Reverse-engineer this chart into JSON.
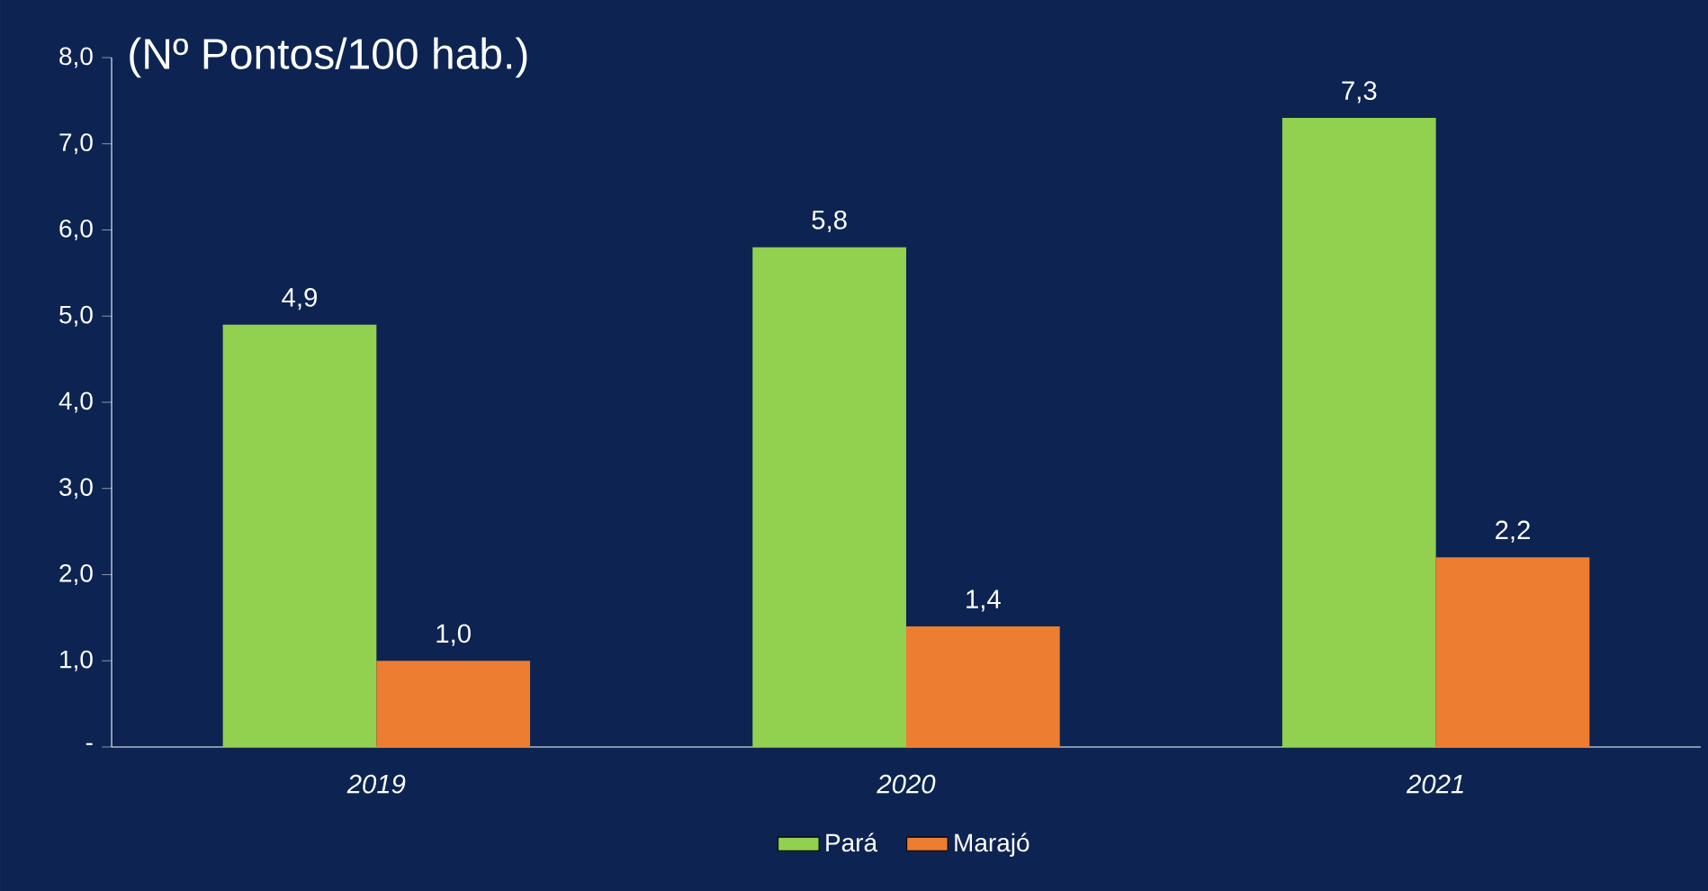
{
  "chart_data": {
    "type": "bar",
    "ylabel": "(Nº Pontos/100 hab.)",
    "categories": [
      "2019",
      "2020",
      "2021"
    ],
    "series": [
      {
        "name": "Pará",
        "color": "#92d050",
        "values": [
          4.9,
          5.8,
          7.3
        ],
        "value_labels": [
          "4,9",
          "5,8",
          "7,3"
        ]
      },
      {
        "name": "Marajó",
        "color": "#ed7d31",
        "values": [
          1.0,
          1.4,
          2.2
        ],
        "value_labels": [
          "1,0",
          "1,4",
          "2,2"
        ]
      }
    ],
    "ylim": [
      0,
      8
    ],
    "yticks": [
      {
        "value": 0,
        "label": "-"
      },
      {
        "value": 1,
        "label": "1,0"
      },
      {
        "value": 2,
        "label": "2,0"
      },
      {
        "value": 3,
        "label": "3,0"
      },
      {
        "value": 4,
        "label": "4,0"
      },
      {
        "value": 5,
        "label": "5,0"
      },
      {
        "value": 6,
        "label": "6,0"
      },
      {
        "value": 7,
        "label": "7,0"
      },
      {
        "value": 8,
        "label": "8,0"
      }
    ],
    "legend": "bottom"
  }
}
